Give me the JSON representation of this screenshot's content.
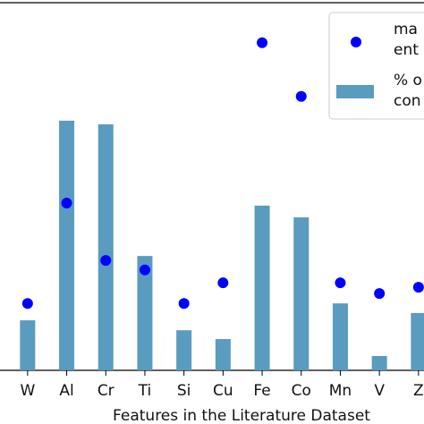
{
  "chart_data": {
    "type": "bar_scatter",
    "x_label": "Features in the Literature Dataset",
    "categories": [
      "W",
      "Al",
      "Cr",
      "Ti",
      "Si",
      "Cu",
      "Fe",
      "Co",
      "Mn",
      "V",
      "Z"
    ],
    "ylim": [
      0,
      100
    ],
    "series": [
      {
        "name": [
          "ma",
          "ent"
        ],
        "kind": "scatter",
        "color": "#0000ff",
        "values": [
          18.2,
          45.5,
          29.9,
          27.3,
          18.2,
          23.8,
          89.1,
          74.5,
          23.8,
          20.9,
          22.6
        ]
      },
      {
        "name": [
          "% o",
          "con"
        ],
        "kind": "bar",
        "color": "#5a9bc0",
        "values": [
          13.6,
          67.9,
          66.9,
          31.1,
          10.9,
          8.5,
          44.8,
          41.6,
          18.2,
          3.9,
          15.6
        ]
      }
    ]
  }
}
